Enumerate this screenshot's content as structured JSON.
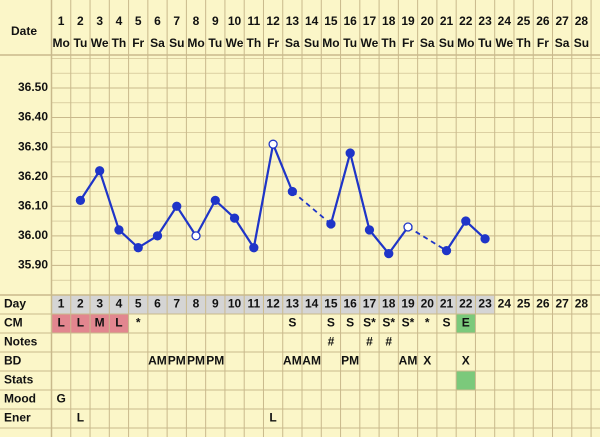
{
  "chart_data": {
    "type": "line",
    "x_label": "Date",
    "categories": [
      1,
      2,
      3,
      4,
      5,
      6,
      7,
      8,
      9,
      10,
      11,
      12,
      13,
      14,
      15,
      16,
      17,
      18,
      19,
      20,
      21,
      22,
      23,
      24,
      25,
      26,
      27,
      28
    ],
    "weekdays": [
      "Mo",
      "Tu",
      "We",
      "Th",
      "Fr",
      "Sa",
      "Su",
      "Mo",
      "Tu",
      "We",
      "Th",
      "Fr",
      "Sa",
      "Su",
      "Mo",
      "Tu",
      "We",
      "Th",
      "Fr",
      "Sa",
      "Su",
      "Mo",
      "Tu",
      "We",
      "Th",
      "Fr",
      "Sa",
      "Su"
    ],
    "values": [
      null,
      36.12,
      36.22,
      36.02,
      35.96,
      36.0,
      36.1,
      36.0,
      36.12,
      36.06,
      35.96,
      36.31,
      36.15,
      null,
      36.04,
      36.28,
      36.02,
      35.94,
      36.03,
      null,
      35.95,
      36.05,
      35.99,
      null,
      null,
      null,
      null,
      null
    ],
    "point_style": [
      null,
      "filled",
      "filled",
      "filled",
      "filled",
      "filled",
      "filled",
      "open",
      "filled",
      "filled",
      "filled",
      "open",
      "filled",
      null,
      "filled",
      "filled",
      "filled",
      "filled",
      "open",
      null,
      "filled",
      "filled",
      "filled",
      null,
      null,
      null,
      null,
      null
    ],
    "color": "#1f35c8",
    "bridge_gaps": "dashed",
    "ylim": [
      35.8,
      36.6
    ],
    "yticks": [
      {
        "value": 35.9,
        "label": "35.90"
      },
      {
        "value": 36.0,
        "label": "36.00"
      },
      {
        "value": 36.1,
        "label": "36.10"
      },
      {
        "value": 36.2,
        "label": "36.20"
      },
      {
        "value": 36.3,
        "label": "36.30"
      },
      {
        "value": 36.4,
        "label": "36.40"
      },
      {
        "value": 36.5,
        "label": "36.50"
      }
    ],
    "grid": true
  },
  "table": {
    "day_label": "Day",
    "rows": [
      {
        "label": "CM",
        "cells": [
          {
            "text": "L",
            "fill": "#e2868f"
          },
          {
            "text": "L",
            "fill": "#e2868f"
          },
          {
            "text": "M",
            "fill": "#e2868f"
          },
          {
            "text": "L",
            "fill": "#e2868f"
          },
          {
            "text": "*"
          },
          null,
          null,
          null,
          null,
          null,
          null,
          null,
          {
            "text": "S"
          },
          null,
          {
            "text": "S"
          },
          {
            "text": "S"
          },
          {
            "text": "S*"
          },
          {
            "text": "S*"
          },
          {
            "text": "S*"
          },
          {
            "text": "*"
          },
          {
            "text": "S"
          },
          {
            "text": "E",
            "fill": "#7bc97b"
          },
          null,
          null,
          null,
          null,
          null,
          null
        ]
      },
      {
        "label": "Notes",
        "cells": [
          null,
          null,
          null,
          null,
          null,
          null,
          null,
          null,
          null,
          null,
          null,
          null,
          null,
          null,
          {
            "text": "#"
          },
          null,
          {
            "text": "#"
          },
          {
            "text": "#"
          },
          null,
          null,
          null,
          null,
          null,
          null,
          null,
          null,
          null,
          null
        ]
      },
      {
        "label": "BD",
        "cells": [
          null,
          null,
          null,
          null,
          null,
          {
            "text": "AM"
          },
          {
            "text": "PM"
          },
          {
            "text": "PM"
          },
          {
            "text": "PM"
          },
          null,
          null,
          null,
          {
            "text": "AM"
          },
          {
            "text": "AM"
          },
          null,
          {
            "text": "PM"
          },
          null,
          null,
          {
            "text": "AM"
          },
          {
            "text": "X"
          },
          null,
          {
            "text": "X"
          },
          null,
          null,
          null,
          null,
          null,
          null
        ]
      },
      {
        "label": "Stats",
        "cells": [
          null,
          null,
          null,
          null,
          null,
          null,
          null,
          null,
          null,
          null,
          null,
          null,
          null,
          null,
          null,
          null,
          null,
          null,
          null,
          null,
          null,
          {
            "fill": "#7bc97b"
          },
          null,
          null,
          null,
          null,
          null,
          null
        ]
      },
      {
        "label": "Mood",
        "cells": [
          {
            "text": "G"
          },
          null,
          null,
          null,
          null,
          null,
          null,
          null,
          null,
          null,
          null,
          null,
          null,
          null,
          null,
          null,
          null,
          null,
          null,
          null,
          null,
          null,
          null,
          null,
          null,
          null,
          null,
          null
        ]
      },
      {
        "label": "Ener",
        "cells": [
          null,
          {
            "text": "L"
          },
          null,
          null,
          null,
          null,
          null,
          null,
          null,
          null,
          null,
          {
            "text": "L"
          },
          null,
          null,
          null,
          null,
          null,
          null,
          null,
          null,
          null,
          null,
          null,
          null,
          null,
          null,
          null,
          null
        ]
      }
    ]
  }
}
